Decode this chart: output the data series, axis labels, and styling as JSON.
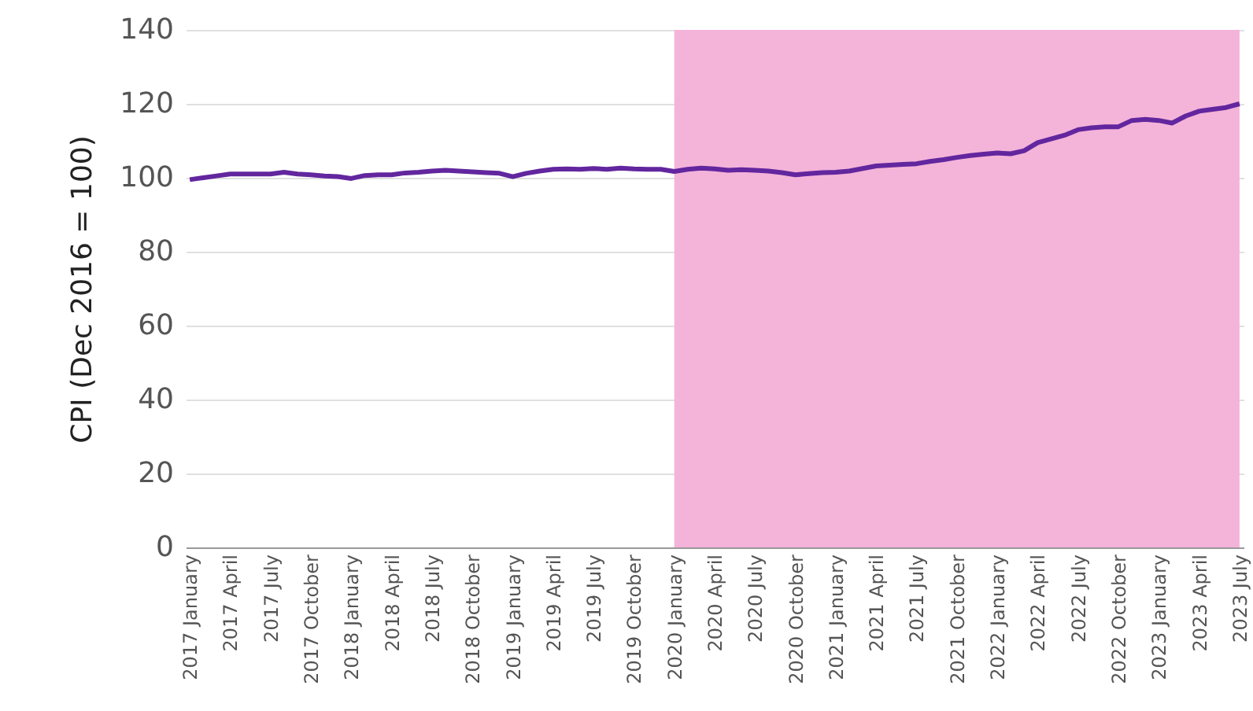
{
  "chart_data": {
    "type": "line",
    "ylabel": "CPI (Dec 2016 = 100)",
    "categories": [
      "2017 January",
      null,
      null,
      "2017 April",
      null,
      null,
      "2017 July",
      null,
      null,
      "2017 October",
      null,
      null,
      "2018 January",
      null,
      null,
      "2018 April",
      null,
      null,
      "2018 July",
      null,
      null,
      "2018 October",
      null,
      null,
      "2019 January",
      null,
      null,
      "2019 April",
      null,
      null,
      "2019 July",
      null,
      null,
      "2019 October",
      null,
      null,
      "2020 January",
      null,
      null,
      "2020 April",
      null,
      null,
      "2020 July",
      null,
      null,
      "2020 October",
      null,
      null,
      "2021 January",
      null,
      null,
      "2021 April",
      null,
      null,
      "2021 July",
      null,
      null,
      "2021 October",
      null,
      null,
      "2022 January",
      null,
      null,
      "2022 April",
      null,
      null,
      "2022 July",
      null,
      null,
      "2022 October",
      null,
      null,
      "2023 January",
      null,
      null,
      "2023 April",
      null,
      null,
      "2023 July"
    ],
    "series": [
      {
        "color": "#62269e",
        "values": [
          99.5,
          100,
          100.5,
          101,
          101,
          101,
          101,
          101.5,
          101,
          100.8,
          100.5,
          100.3,
          99.8,
          100.6,
          100.8,
          100.8,
          101.3,
          101.5,
          101.8,
          102,
          101.8,
          101.6,
          101.4,
          101.2,
          100.3,
          101.2,
          101.8,
          102.3,
          102.4,
          102.3,
          102.5,
          102.3,
          102.6,
          102.4,
          102.3,
          102.3,
          101.7,
          102.3,
          102.6,
          102.4,
          102,
          102.2,
          102,
          101.8,
          101.4,
          100.8,
          101.1,
          101.4,
          101.5,
          101.8,
          102.5,
          103.2,
          103.4,
          103.6,
          103.8,
          104.4,
          104.9,
          105.5,
          106,
          106.4,
          106.7,
          106.5,
          107.3,
          109.5,
          110.5,
          111.5,
          113,
          113.5,
          113.8,
          113.8,
          115.5,
          115.8,
          115.5,
          114.8,
          116.7,
          118,
          118.5,
          119,
          120
        ]
      }
    ],
    "ylim": [
      0,
      140
    ],
    "yticks": [
      0,
      20,
      40,
      60,
      80,
      100,
      120,
      140
    ],
    "grid": "y",
    "bands": [
      {
        "axis": "x",
        "from": "2020 January",
        "to": "2023 July",
        "color": "#f4b3d9"
      }
    ]
  }
}
